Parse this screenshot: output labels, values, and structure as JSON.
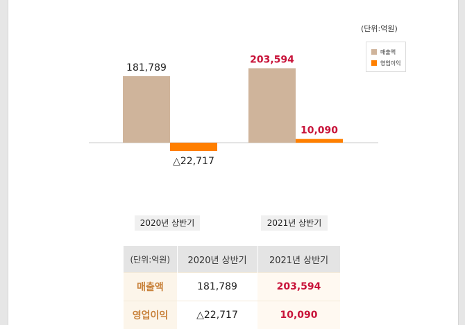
{
  "chart_data": {
    "type": "bar",
    "unit_label": "(단위:억원)",
    "categories": [
      "2020년 상반기",
      "2021년 상반기"
    ],
    "series": [
      {
        "name": "매출액",
        "color": "#cfb49b",
        "values": [
          181789,
          203594
        ],
        "labels": [
          "181,789",
          "203,594"
        ]
      },
      {
        "name": "영업이익",
        "color": "#ff7f00",
        "values": [
          -22717,
          10090
        ],
        "labels": [
          "△22,717",
          "10,090"
        ]
      }
    ],
    "highlight_color": "#c8143a",
    "ylim": [
      -45000,
      205000
    ],
    "grid": false,
    "legend_position": "top-right"
  },
  "table": {
    "headers": [
      "(단위:억원)",
      "2020년 상반기",
      "2021년 상반기"
    ],
    "rows": [
      {
        "label": "매출액",
        "v2020": "181,789",
        "v2021": "203,594"
      },
      {
        "label": "영업이익",
        "v2020": "△22,717",
        "v2021": "10,090"
      }
    ]
  }
}
